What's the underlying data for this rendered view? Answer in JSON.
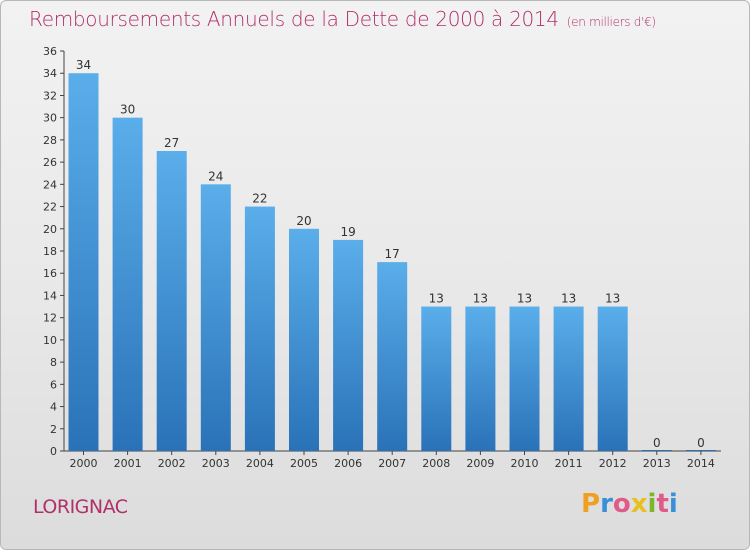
{
  "header": {
    "title": "Remboursements Annuels de la Dette de 2000 à 2014",
    "subtitle": "(en milliers d'€)"
  },
  "footer": {
    "commune": "LORIGNAC",
    "logo_letters": [
      "P",
      "r",
      "o",
      "x",
      "i",
      "t",
      "i"
    ],
    "logo_colors": [
      "#f0a020",
      "#3a8fd8",
      "#e05a8a",
      "#e8c020",
      "#7ab828",
      "#e05a8a",
      "#3a8fd8"
    ]
  },
  "chart_data": {
    "type": "bar",
    "title": "Remboursements Annuels de la Dette de 2000 à 2014",
    "subtitle": "(en milliers d'€)",
    "categories": [
      "2000",
      "2001",
      "2002",
      "2003",
      "2004",
      "2005",
      "2006",
      "2007",
      "2008",
      "2009",
      "2010",
      "2011",
      "2012",
      "2013",
      "2014"
    ],
    "values": [
      34,
      30,
      27,
      24,
      22,
      20,
      19,
      17,
      13,
      13,
      13,
      13,
      13,
      0,
      0
    ],
    "ylim": [
      0,
      36
    ],
    "yticks": [
      0,
      2,
      4,
      6,
      8,
      10,
      12,
      14,
      16,
      18,
      20,
      22,
      24,
      26,
      28,
      30,
      32,
      34,
      36
    ],
    "grid": false,
    "bar_color_top": "#5aaeea",
    "bar_color_bottom": "#2a72b8"
  }
}
